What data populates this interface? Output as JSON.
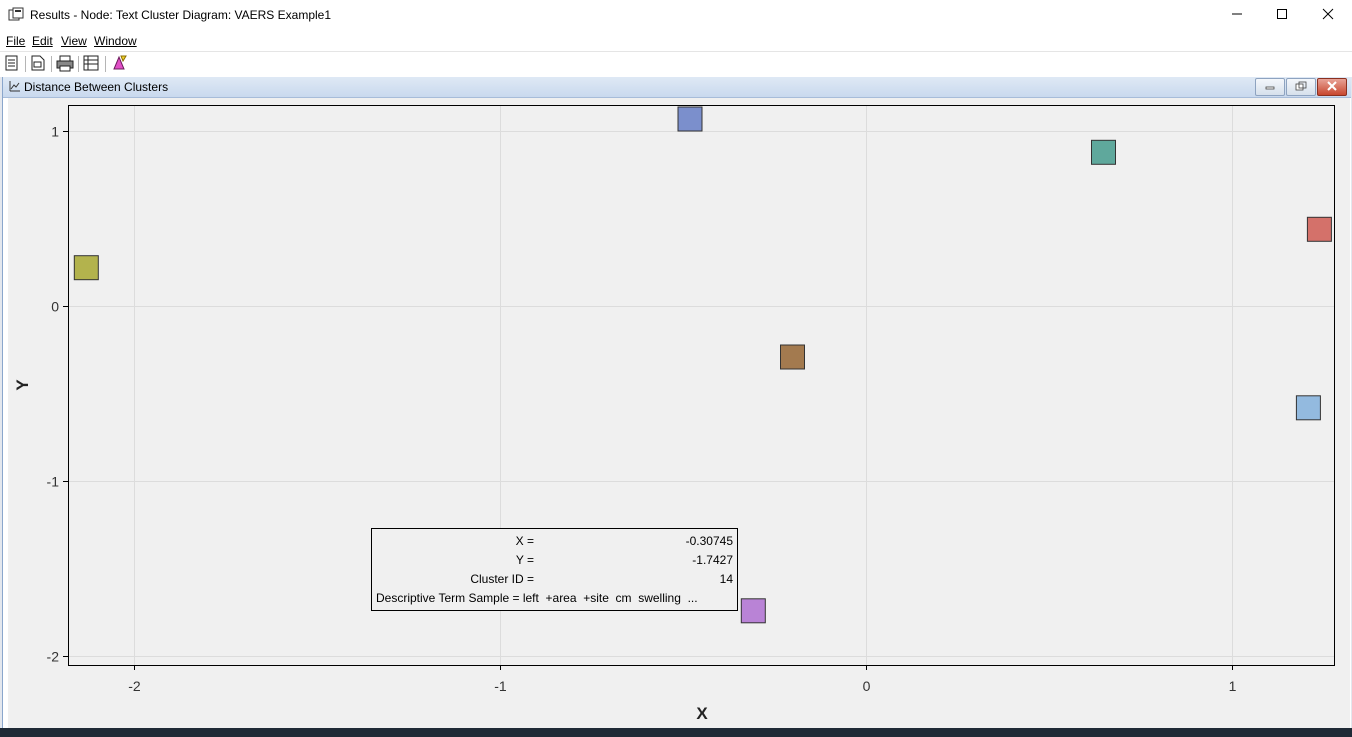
{
  "window": {
    "title": "Results - Node: Text Cluster  Diagram: VAERS Example1",
    "icon": "results-window-icon"
  },
  "menu": {
    "items": [
      {
        "label": "File",
        "name": "menu-file"
      },
      {
        "label": "Edit",
        "name": "menu-edit"
      },
      {
        "label": "View",
        "name": "menu-view"
      },
      {
        "label": "Window",
        "name": "menu-window"
      }
    ]
  },
  "toolbar": {
    "buttons": [
      "properties-icon",
      "report-icon",
      "print-icon",
      "table-icon",
      "highlight-icon"
    ]
  },
  "child_window": {
    "title": "Distance Between Clusters",
    "icon": "plot-icon"
  },
  "chart_data": {
    "type": "scatter",
    "xlabel": "X",
    "ylabel": "Y",
    "xlim": [
      -2.18,
      1.28
    ],
    "ylim": [
      -2.05,
      1.15
    ],
    "xticks": [
      -2,
      -1,
      0,
      1
    ],
    "yticks": [
      -2,
      -1,
      0,
      1
    ],
    "xtick_labels": [
      "-2",
      "-1",
      "0",
      "1"
    ],
    "ytick_labels": [
      "-2",
      "-1",
      "0",
      "1"
    ],
    "grid": true,
    "points": [
      {
        "x": -2.13,
        "y": 0.22,
        "color": "#b3b34d"
      },
      {
        "x": -0.48,
        "y": 1.07,
        "color": "#7b8fcc"
      },
      {
        "x": 0.65,
        "y": 0.88,
        "color": "#5fa89c"
      },
      {
        "x": 1.24,
        "y": 0.44,
        "color": "#d4716a"
      },
      {
        "x": -0.2,
        "y": -0.29,
        "color": "#a37a4f"
      },
      {
        "x": 1.21,
        "y": -0.58,
        "color": "#93badf"
      },
      {
        "x": -0.307,
        "y": -1.74,
        "color": "#b983d6"
      }
    ]
  },
  "tooltip": {
    "rows": [
      {
        "label": "X =",
        "value": "-0.30745"
      },
      {
        "label": "Y =",
        "value": "-1.7427"
      },
      {
        "label": "Cluster ID =",
        "value": "14"
      }
    ],
    "term_row": "Descriptive Term Sample = left  +area  +site  cm  swelling  ..."
  }
}
